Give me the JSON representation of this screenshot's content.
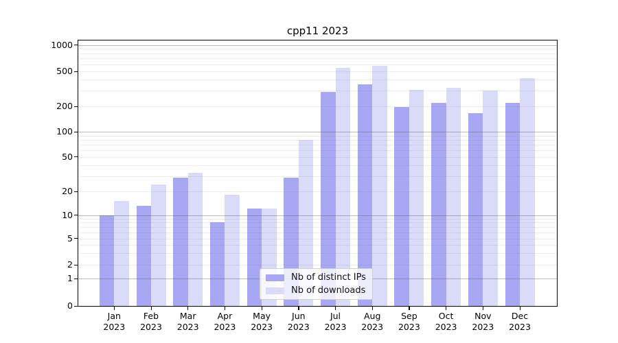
{
  "chart_data": {
    "type": "bar",
    "title": "cpp11 2023",
    "categories": [
      "Jan",
      "Feb",
      "Mar",
      "Apr",
      "May",
      "Jun",
      "Jul",
      "Aug",
      "Sep",
      "Oct",
      "Nov",
      "Dec"
    ],
    "x_tick_second_line": "2023",
    "series": [
      {
        "name": "Nb of distinct IPs",
        "color": "#a7a7f4",
        "values": [
          10,
          13,
          29,
          8,
          12,
          29,
          290,
          355,
          195,
          220,
          165,
          220
        ]
      },
      {
        "name": "Nb of downloads",
        "color": "#dadaf9",
        "values": [
          15,
          24,
          33,
          18,
          12,
          79,
          550,
          580,
          310,
          325,
          305,
          415
        ]
      }
    ],
    "y_ticks": [
      0,
      1,
      2,
      5,
      10,
      20,
      50,
      100,
      200,
      500,
      1000
    ],
    "ylim": [
      0,
      1150
    ],
    "yscale": "symlog",
    "xlabel": "",
    "ylabel": "",
    "grid": "horizontal major and minor, drawn over bars",
    "legend": {
      "entries": [
        "Nb of distinct IPs",
        "Nb of downloads"
      ],
      "position": "lower center inside plot"
    }
  },
  "colors": {
    "bar_distinct_ips": "#a7a7f4",
    "bar_downloads": "#dadaf9",
    "major_grid": "#b5b5b5",
    "minor_grid": "#e8e8e8",
    "spine": "#000000",
    "background": "#ffffff"
  }
}
